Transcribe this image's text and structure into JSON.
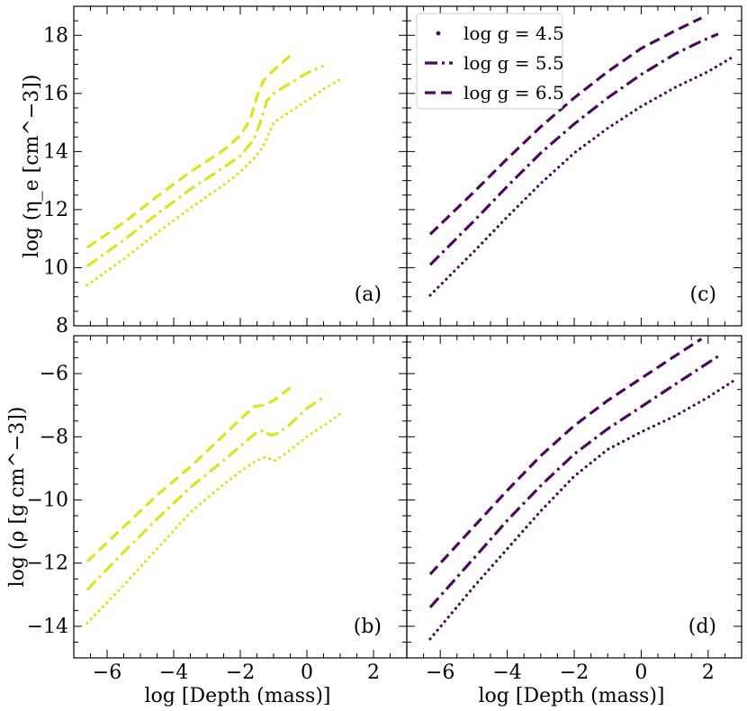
{
  "chart_data": {
    "type": "line",
    "layout": "2x2 panels, shared x axis per column, shared y axis per row",
    "colors": {
      "yellow": "#dde31f",
      "purple": "#4b0a5c"
    },
    "legend": {
      "placement": "upper-left of panel (c)",
      "entries": [
        {
          "label": "log g = 4.5",
          "style": "dotted"
        },
        {
          "label": "log g = 5.5",
          "style": "dashdot"
        },
        {
          "label": "log g = 6.5",
          "style": "dashed"
        }
      ]
    },
    "x_axis": {
      "label": "log [Depth (mass)]",
      "range": [
        -7,
        3
      ],
      "ticks": [
        -6,
        -4,
        -2,
        0,
        2
      ],
      "tick_labels": [
        "−6",
        "−4",
        "−2",
        "0",
        "2"
      ]
    },
    "rows": [
      {
        "ylabel": "log (η_e [cm^−3])",
        "range": [
          8,
          19
        ],
        "ticks": [
          8,
          10,
          12,
          14,
          16,
          18
        ],
        "tick_labels": [
          "8",
          "10",
          "12",
          "14",
          "16",
          "18"
        ]
      },
      {
        "ylabel": "log (ρ [g cm^−3])",
        "range": [
          -15,
          -4.8
        ],
        "ticks": [
          -14,
          -12,
          -10,
          -8,
          -6
        ],
        "tick_labels": [
          "−14",
          "−12",
          "−10",
          "−8",
          "−6"
        ]
      }
    ],
    "panels": [
      {
        "tag": "(a)",
        "row": 0,
        "col": 0,
        "color": "yellow",
        "series": [
          {
            "name": "log g = 4.5",
            "style": "dotted",
            "x": [
              -6.6,
              -5.5,
              -4.5,
              -3.5,
              -2.5,
              -2.0,
              -1.6,
              -1.35,
              -1.15,
              -1.0,
              -0.6,
              0,
              0.5,
              1.1
            ],
            "y": [
              9.4,
              10.3,
              11.2,
              12.05,
              12.85,
              13.3,
              13.75,
              14.1,
              14.6,
              15.0,
              15.3,
              15.75,
              16.15,
              16.55
            ]
          },
          {
            "name": "log g = 5.5",
            "style": "dashdot",
            "x": [
              -6.6,
              -5.5,
              -4.5,
              -3.5,
              -2.5,
              -2.0,
              -1.6,
              -1.4,
              -1.2,
              -1.0,
              -0.5,
              0,
              0.5
            ],
            "y": [
              10.05,
              10.95,
              11.85,
              12.7,
              13.45,
              13.85,
              14.4,
              15.0,
              15.75,
              16.0,
              16.35,
              16.7,
              16.95
            ]
          },
          {
            "name": "log g = 6.5",
            "style": "dashed",
            "x": [
              -6.6,
              -5.5,
              -4.5,
              -3.5,
              -2.5,
              -2.0,
              -1.7,
              -1.5,
              -1.3,
              -1.0,
              -0.5
            ],
            "y": [
              10.7,
              11.55,
              12.45,
              13.3,
              14.05,
              14.55,
              15.1,
              15.9,
              16.45,
              16.8,
              17.3
            ]
          }
        ]
      },
      {
        "tag": "(b)",
        "row": 1,
        "col": 0,
        "color": "yellow",
        "series": [
          {
            "name": "log g = 4.5",
            "style": "dotted",
            "x": [
              -6.6,
              -5.5,
              -4.5,
              -3.5,
              -2.5,
              -2.0,
              -1.5,
              -1.25,
              -1.1,
              -0.95,
              -0.6,
              0,
              0.5,
              1.1
            ],
            "y": [
              -13.9,
              -12.7,
              -11.55,
              -10.4,
              -9.5,
              -9.1,
              -8.75,
              -8.65,
              -8.7,
              -8.75,
              -8.5,
              -8.0,
              -7.65,
              -7.2
            ]
          },
          {
            "name": "log g = 5.5",
            "style": "dashdot",
            "x": [
              -6.6,
              -5.5,
              -4.5,
              -3.5,
              -2.5,
              -2.0,
              -1.5,
              -1.3,
              -1.1,
              -0.9,
              -0.5,
              0,
              0.5
            ],
            "y": [
              -12.85,
              -11.65,
              -10.6,
              -9.6,
              -8.75,
              -8.3,
              -7.85,
              -7.8,
              -7.95,
              -7.9,
              -7.6,
              -7.1,
              -6.75
            ]
          },
          {
            "name": "log g = 6.5",
            "style": "dashed",
            "x": [
              -6.6,
              -5.5,
              -4.5,
              -3.5,
              -2.5,
              -2.0,
              -1.6,
              -1.3,
              -1.0,
              -0.5
            ],
            "y": [
              -11.95,
              -10.85,
              -9.85,
              -8.95,
              -7.95,
              -7.45,
              -7.05,
              -7.0,
              -6.85,
              -6.45
            ]
          }
        ]
      },
      {
        "tag": "(c)",
        "row": 0,
        "col": 1,
        "color": "purple",
        "series": [
          {
            "name": "log g = 4.5",
            "style": "dotted",
            "x": [
              -6.3,
              -5,
              -4,
              -3,
              -2,
              -1,
              0,
              1,
              2,
              2.8
            ],
            "y": [
              9.05,
              10.55,
              11.75,
              12.9,
              13.95,
              14.8,
              15.55,
              16.2,
              16.75,
              17.3
            ]
          },
          {
            "name": "log g = 5.5",
            "style": "dashdot",
            "x": [
              -6.3,
              -5,
              -4,
              -3,
              -2,
              -1,
              0,
              1,
              1.8,
              2.3
            ],
            "y": [
              10.1,
              11.6,
              12.8,
              13.95,
              14.95,
              15.85,
              16.65,
              17.35,
              17.8,
              18.05
            ]
          },
          {
            "name": "log g = 6.5",
            "style": "dashed",
            "x": [
              -6.3,
              -5,
              -4,
              -3,
              -2,
              -1,
              0,
              1,
              1.8
            ],
            "y": [
              11.15,
              12.6,
              13.75,
              14.85,
              15.85,
              16.75,
              17.55,
              18.15,
              18.6
            ]
          }
        ]
      },
      {
        "tag": "(d)",
        "row": 1,
        "col": 1,
        "color": "purple",
        "series": [
          {
            "name": "log g = 4.5",
            "style": "dotted",
            "x": [
              -6.3,
              -5,
              -4,
              -3,
              -2,
              -1,
              0,
              1,
              2,
              2.8
            ],
            "y": [
              -14.4,
              -12.75,
              -11.55,
              -10.35,
              -9.25,
              -8.4,
              -7.85,
              -7.35,
              -6.75,
              -6.2
            ]
          },
          {
            "name": "log g = 5.5",
            "style": "dashdot",
            "x": [
              -6.3,
              -5,
              -4,
              -3,
              -2,
              -1,
              0,
              1,
              2.3
            ],
            "y": [
              -13.4,
              -11.85,
              -10.65,
              -9.55,
              -8.55,
              -7.75,
              -7.05,
              -6.35,
              -5.45
            ]
          },
          {
            "name": "log g = 6.5",
            "style": "dashed",
            "x": [
              -6.3,
              -5,
              -4,
              -3,
              -2,
              -1,
              0,
              1,
              1.8
            ],
            "y": [
              -12.35,
              -10.85,
              -9.7,
              -8.6,
              -7.65,
              -6.85,
              -6.15,
              -5.45,
              -4.9
            ]
          }
        ]
      }
    ]
  }
}
